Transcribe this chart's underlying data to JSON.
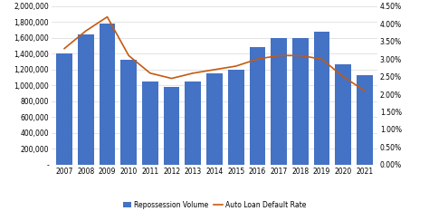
{
  "years": [
    2007,
    2008,
    2009,
    2010,
    2011,
    2012,
    2013,
    2014,
    2015,
    2016,
    2017,
    2018,
    2019,
    2020,
    2021
  ],
  "repossession_volume": [
    1400000,
    1650000,
    1780000,
    1330000,
    1050000,
    980000,
    1050000,
    1150000,
    1200000,
    1480000,
    1600000,
    1600000,
    1680000,
    1270000,
    1130000
  ],
  "auto_loan_default_rate": [
    0.033,
    0.038,
    0.042,
    0.031,
    0.026,
    0.0245,
    0.026,
    0.027,
    0.028,
    0.03,
    0.031,
    0.031,
    0.03,
    0.025,
    0.021
  ],
  "bar_color": "#4472C4",
  "line_color": "#C55A11",
  "ylim_left": [
    0,
    2000000
  ],
  "ylim_right": [
    0,
    0.045
  ],
  "yticks_left": [
    0,
    200000,
    400000,
    600000,
    800000,
    1000000,
    1200000,
    1400000,
    1600000,
    1800000,
    2000000
  ],
  "yticks_right": [
    0.0,
    0.005,
    0.01,
    0.015,
    0.02,
    0.025,
    0.03,
    0.035,
    0.04,
    0.045
  ],
  "legend_labels": [
    "Repossession Volume",
    "Auto Loan Default Rate"
  ],
  "background_color": "#FFFFFF",
  "grid_color": "#D9D9D9"
}
